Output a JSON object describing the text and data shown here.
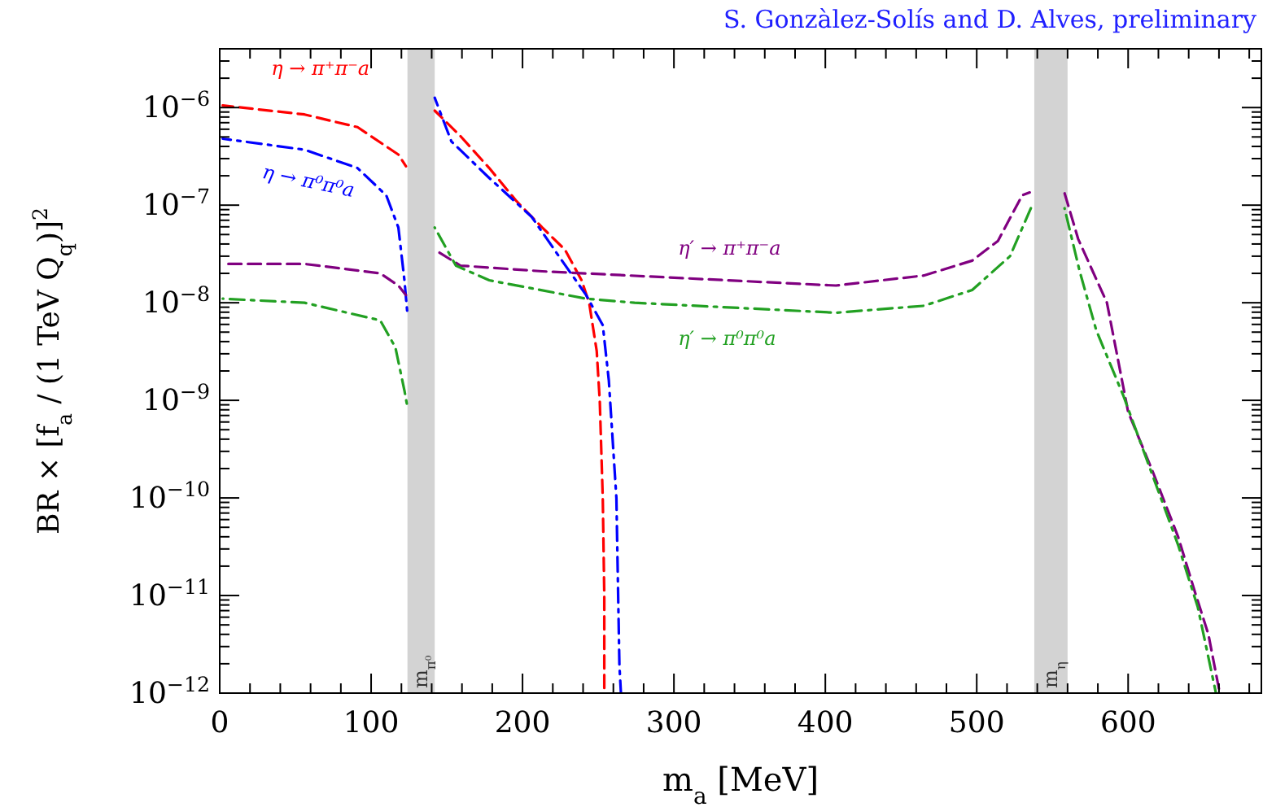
{
  "chart_data": {
    "type": "line",
    "title": "S. Gonzàlez-Solís and D. Alves, preliminary",
    "xlabel": "m$_{a}$ [MeV]",
    "ylabel": "BR × [f$_{a}$ / (1 TeV Q$_{q}$)]$^{2}$",
    "log": "y",
    "xlim": [
      0,
      688
    ],
    "ylim": [
      1e-12,
      4e-06
    ],
    "xticks": [
      0,
      {
        "value": 20,
        "label": null
      },
      {
        "value": 40,
        "label": null
      },
      {
        "value": 60,
        "label": null
      },
      {
        "value": 80,
        "label": null
      },
      100,
      {
        "value": 120,
        "label": null
      },
      {
        "value": 140,
        "label": null
      },
      {
        "value": 160,
        "label": null
      },
      {
        "value": 180,
        "label": null
      },
      200,
      {
        "value": 220,
        "label": null
      },
      {
        "value": 240,
        "label": null
      },
      {
        "value": 260,
        "label": null
      },
      {
        "value": 280,
        "label": null
      },
      300,
      {
        "value": 320,
        "label": null
      },
      {
        "value": 340,
        "label": null
      },
      {
        "value": 360,
        "label": null
      },
      {
        "value": 380,
        "label": null
      },
      400,
      {
        "value": 420,
        "label": null
      },
      {
        "value": 440,
        "label": null
      },
      {
        "value": 460,
        "label": null
      },
      {
        "value": 480,
        "label": null
      },
      500,
      {
        "value": 520,
        "label": null
      },
      {
        "value": 540,
        "label": null
      },
      {
        "value": 560,
        "label": null
      },
      {
        "value": 580,
        "label": null
      },
      600,
      {
        "value": 620,
        "label": null
      },
      {
        "value": 640,
        "label": null
      },
      {
        "value": 660,
        "label": null
      },
      {
        "value": 680,
        "label": null
      }
    ],
    "yticks": [
      {
        "value": 1e-12,
        "label": "10$^{−12}$"
      },
      {
        "value": 2e-12,
        "label": null
      },
      {
        "value": 3e-12,
        "label": null
      },
      {
        "value": 4e-12,
        "label": null
      },
      {
        "value": 5e-12,
        "label": null
      },
      {
        "value": 6e-12,
        "label": null
      },
      {
        "value": 7e-12,
        "label": null
      },
      {
        "value": 8e-12,
        "label": null
      },
      {
        "value": 9e-12,
        "label": null
      },
      {
        "value": 1e-11,
        "label": "10$^{−11}$"
      },
      {
        "value": 2e-11,
        "label": null
      },
      {
        "value": 3e-11,
        "label": null
      },
      {
        "value": 4e-11,
        "label": null
      },
      {
        "value": 5e-11,
        "label": null
      },
      {
        "value": 6e-11,
        "label": null
      },
      {
        "value": 7e-11,
        "label": null
      },
      {
        "value": 8e-11,
        "label": null
      },
      {
        "value": 9e-11,
        "label": null
      },
      {
        "value": 1e-10,
        "label": "10$^{−10}$"
      },
      {
        "value": 2e-10,
        "label": null
      },
      {
        "value": 3e-10,
        "label": null
      },
      {
        "value": 4e-10,
        "label": null
      },
      {
        "value": 5e-10,
        "label": null
      },
      {
        "value": 6e-10,
        "label": null
      },
      {
        "value": 7e-10,
        "label": null
      },
      {
        "value": 8e-10,
        "label": null
      },
      {
        "value": 9e-10,
        "label": null
      },
      {
        "value": 1e-09,
        "label": "10$^{−9}$"
      },
      {
        "value": 2e-09,
        "label": null
      },
      {
        "value": 3e-09,
        "label": null
      },
      {
        "value": 4e-09,
        "label": null
      },
      {
        "value": 5e-09,
        "label": null
      },
      {
        "value": 6e-09,
        "label": null
      },
      {
        "value": 7e-09,
        "label": null
      },
      {
        "value": 8e-09,
        "label": null
      },
      {
        "value": 9e-09,
        "label": null
      },
      {
        "value": 1e-08,
        "label": "10$^{−8}$"
      },
      {
        "value": 2e-08,
        "label": null
      },
      {
        "value": 3e-08,
        "label": null
      },
      {
        "value": 4e-08,
        "label": null
      },
      {
        "value": 5e-08,
        "label": null
      },
      {
        "value": 6e-08,
        "label": null
      },
      {
        "value": 7e-08,
        "label": null
      },
      {
        "value": 8e-08,
        "label": null
      },
      {
        "value": 9e-08,
        "label": null
      },
      {
        "value": 1e-07,
        "label": "10$^{−7}$"
      },
      {
        "value": 2e-07,
        "label": null
      },
      {
        "value": 3e-07,
        "label": null
      },
      {
        "value": 4e-07,
        "label": null
      },
      {
        "value": 5e-07,
        "label": null
      },
      {
        "value": 6e-07,
        "label": null
      },
      {
        "value": 7e-07,
        "label": null
      },
      {
        "value": 8e-07,
        "label": null
      },
      {
        "value": 9e-07,
        "label": null
      },
      {
        "value": 1e-06,
        "label": "10$^{−6}$"
      },
      {
        "value": 2e-06,
        "label": null
      },
      {
        "value": 3e-06,
        "label": null
      },
      {
        "value": 4e-06,
        "label": null
      }
    ],
    "grid": false,
    "bands": [
      {
        "axis": "x",
        "from": 124,
        "to": 142,
        "label": "m$_{π⁰}$",
        "color": "#d3d3d3"
      },
      {
        "axis": "x",
        "from": 538,
        "to": 560,
        "label": "m$_{η}$",
        "color": "#d3d3d3"
      }
    ],
    "series": [
      {
        "name": "η → π⁺π⁻a",
        "color": "#ff0000",
        "line_style": "dashed",
        "x": [
          2,
          56,
          91,
          118,
          123,
          133,
          142,
          159,
          178,
          196,
          213,
          228,
          239,
          244,
          249,
          251,
          253,
          254,
          254
        ],
        "values": [
          1.05e-06,
          8.5e-07,
          6.3e-07,
          3.3e-07,
          2.5e-07,
          null,
          9.3e-07,
          5.1e-07,
          2.4e-07,
          1.1e-07,
          5.9e-08,
          3.5e-08,
          1.7e-08,
          1e-08,
          3.2e-09,
          1e-09,
          1e-10,
          1e-11,
          1e-12
        ]
      },
      {
        "name": "η → π⁰π⁰a",
        "color": "#0000ff",
        "line_style": "dashdot",
        "x": [
          2,
          56,
          91,
          110,
          118,
          122,
          124,
          133,
          142,
          153,
          178,
          206,
          224,
          242,
          253,
          257,
          262,
          264,
          265
        ],
        "values": [
          4.8e-07,
          3.7e-07,
          2.4e-07,
          1.26e-07,
          5.9e-08,
          1.7e-08,
          7.6e-09,
          null,
          1.26e-06,
          4.5e-07,
          1.9e-07,
          7.6e-08,
          3e-08,
          1.2e-08,
          5.9e-09,
          1.6e-09,
          1e-10,
          1.9e-12,
          1e-12
        ]
      },
      {
        "name": "η′ → π⁺π⁻a",
        "color": "#800080",
        "line_style": "dashed",
        "x": [
          2,
          56,
          106,
          118,
          123,
          133,
          142,
          159,
          213,
          271,
          407,
          465,
          497,
          514,
          530,
          535,
          546,
          557,
          567,
          586,
          600,
          616,
          633,
          644,
          653,
          660
        ],
        "values": [
          2.5e-08,
          2.5e-08,
          2e-08,
          1.5e-08,
          1.2e-08,
          null,
          3.5e-08,
          2.4e-08,
          2.1e-08,
          1.9e-08,
          1.5e-08,
          1.9e-08,
          2.7e-08,
          4.3e-08,
          1.26e-07,
          1.35e-07,
          null,
          1.5e-07,
          4.5e-08,
          1e-08,
          7.6e-10,
          1.9e-10,
          4e-11,
          1.1e-11,
          4e-12,
          1.1e-12
        ]
      },
      {
        "name": "η′ → π⁰π⁰a",
        "color": "#22a022",
        "line_style": "dashdot",
        "x": [
          2,
          56,
          106,
          116,
          122,
          124,
          133,
          142,
          156,
          178,
          242,
          274,
          407,
          465,
          497,
          522,
          536,
          547,
          558,
          568,
          579,
          597,
          615,
          633,
          646,
          658
        ],
        "values": [
          1.1e-08,
          1e-08,
          6.6e-09,
          3.5e-09,
          1.26e-09,
          8.5e-10,
          null,
          5.9e-08,
          2.4e-08,
          1.7e-08,
          1.1e-08,
          1e-08,
          7.9e-09,
          9.3e-09,
          1.35e-08,
          3e-08,
          9.5e-08,
          null,
          9.3e-08,
          2.1e-08,
          5.2e-09,
          1.1e-09,
          1.9e-10,
          3.3e-11,
          7.6e-12,
          1e-12
        ]
      }
    ]
  }
}
